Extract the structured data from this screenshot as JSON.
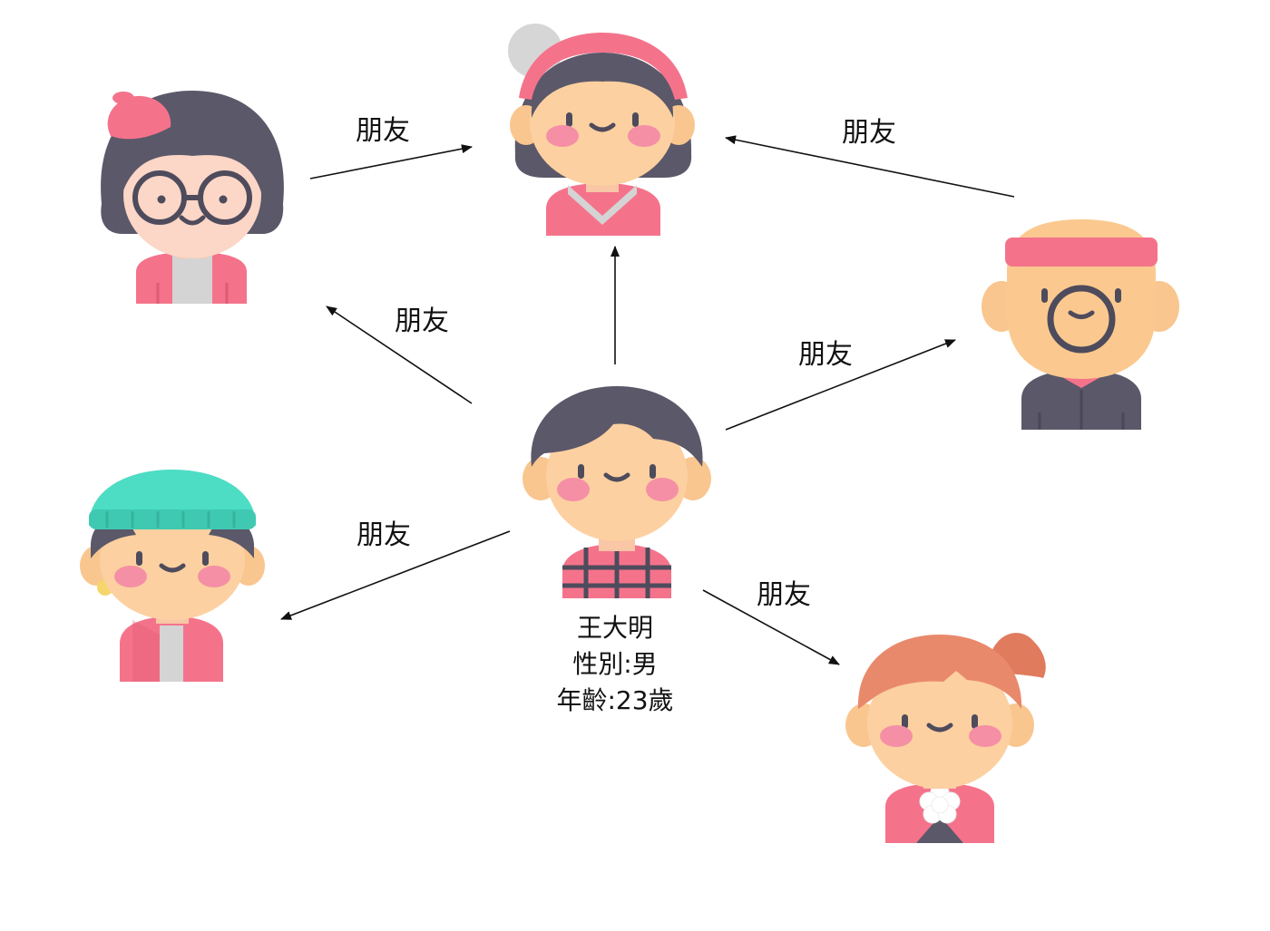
{
  "edges": [
    {
      "id": "glasses-to-grandma",
      "label": "朋友"
    },
    {
      "id": "bald-to-grandma",
      "label": "朋友"
    },
    {
      "id": "center-to-glasses",
      "label": "朋友"
    },
    {
      "id": "center-to-bald",
      "label": "朋友"
    },
    {
      "id": "center-to-beanie",
      "label": "朋友"
    },
    {
      "id": "center-to-ponytail",
      "label": "朋友"
    },
    {
      "id": "center-to-grandma",
      "label": ""
    }
  ],
  "center_person": {
    "name": "王大明",
    "gender": "性別:男",
    "age": "年齡:23歲"
  },
  "colors": {
    "skin": "#f9c68f",
    "skin_light": "#fcd6b0",
    "blush": "#f58fa5",
    "hair": "#5b5869",
    "pink": "#f4738b",
    "pink_dark": "#e15a76",
    "grey": "#d0d0d0",
    "teal": "#4ddcc4",
    "orange_hair": "#ea8a6a"
  },
  "avatars": [
    "avatar-girl-glasses",
    "avatar-grandma",
    "avatar-bald-man",
    "avatar-boy-beanie",
    "avatar-center-boy",
    "avatar-girl-ponytail"
  ]
}
